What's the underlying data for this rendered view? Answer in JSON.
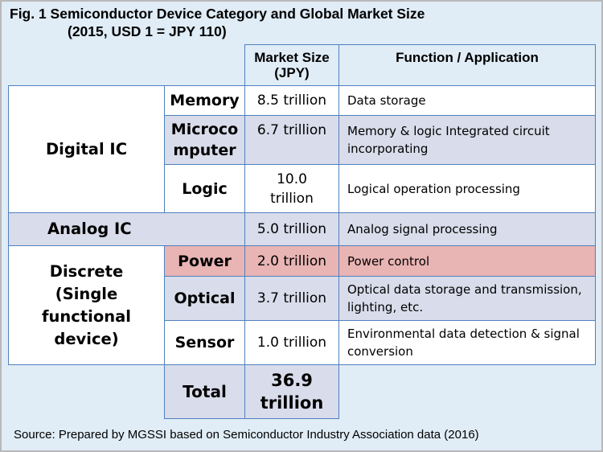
{
  "title": {
    "line1": "Fig. 1   Semiconductor Device Category and Global Market Size",
    "line2": "(2015, USD 1 = JPY 110)"
  },
  "headers": {
    "market_size": "Market Size (JPY)",
    "function": "Function / Application"
  },
  "categories": {
    "digital_ic": "Digital IC",
    "analog_ic": "Analog IC",
    "discrete": "Discrete (Single functional device)"
  },
  "rows": {
    "memory": {
      "label": "Memory",
      "value": "8.5 trillion",
      "function": "Data storage"
    },
    "microcomputer": {
      "label": "Microco mputer",
      "value": "6.7 trillion",
      "function": "Memory & logic Integrated circuit incorporating"
    },
    "logic": {
      "label": "Logic",
      "value": "10.0 trillion",
      "function": "Logical operation processing"
    },
    "analog": {
      "value": "5.0 trillion",
      "function": "Analog signal processing"
    },
    "power": {
      "label": "Power",
      "value": "2.0 trillion",
      "function": "Power control"
    },
    "optical": {
      "label": "Optical",
      "value": "3.7 trillion",
      "function": "Optical data storage and transmission, lighting, etc."
    },
    "sensor": {
      "label": "Sensor",
      "value": "1.0 trillion",
      "function": "Environmental data detection & signal conversion"
    }
  },
  "total": {
    "label": "Total",
    "value": "36.9 trillion"
  },
  "source": "Source: Prepared by MGSSI based on Semiconductor Industry Association data (2016)",
  "colors": {
    "background": "#e0ecf6",
    "border": "#4f81bd",
    "highlight": "#e9b4b4",
    "band": "#d9dcea"
  }
}
